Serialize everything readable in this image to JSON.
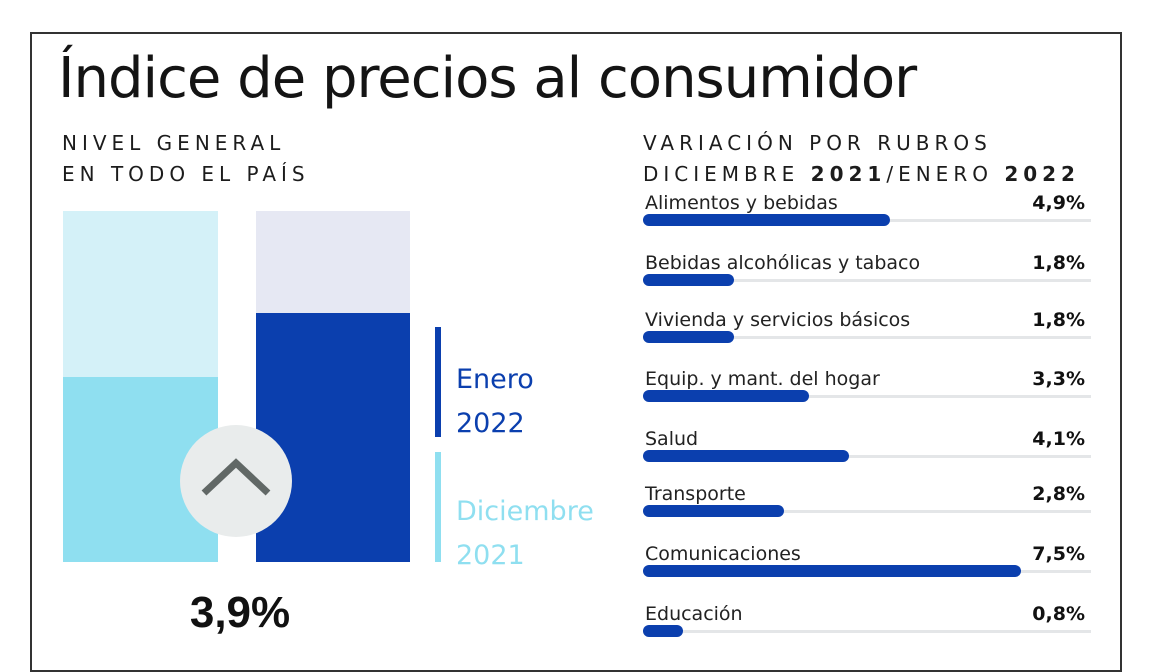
{
  "title": "Índice de precios al consumidor",
  "left_panel": {
    "subtitle_line1": "NIVEL GENERAL",
    "subtitle_line2": "EN TODO EL PAÍS",
    "main_value": "3,9%",
    "legend": {
      "current_month": "Enero",
      "current_year": "2022",
      "previous_month": "Diciembre",
      "previous_year": "2021"
    }
  },
  "right_panel": {
    "subtitle_line1": "VARIACIÓN POR RUBROS",
    "subtitle_line2_a": "DICIEMBRE ",
    "subtitle_line2_b": "2021",
    "subtitle_line2_c": "/ENERO ",
    "subtitle_line2_d": "2022"
  },
  "colors": {
    "current": "#0b3fae",
    "current_bg": "#e6e8f3",
    "previous": "#8fdff0",
    "previous_bg": "#d4f1f8",
    "arrow_circle": "#e9ecec",
    "arrow": "#616866"
  },
  "icons": {
    "trend": "chevron-up-icon"
  },
  "chart_data": [
    {
      "type": "bar",
      "categories": [
        "Diciembre 2021",
        "Enero 2022"
      ],
      "values": [
        2.9,
        3.9
      ],
      "value_labels": [
        "",
        "3,9%"
      ],
      "ylim": [
        0,
        5.5
      ],
      "grid": false
    },
    {
      "type": "bar",
      "orientation": "horizontal",
      "categories": [
        "Alimentos y bebidas",
        "Bebidas alcohólicas y tabaco",
        "Vivienda y servicios básicos",
        "Equip. y mant. del hogar",
        "Salud",
        "Transporte",
        "Comunicaciones",
        "Educación"
      ],
      "values": [
        4.9,
        1.8,
        1.8,
        3.3,
        4.1,
        2.8,
        7.5,
        0.8
      ],
      "value_labels": [
        "4,9%",
        "1,8%",
        "1,8%",
        "3,3%",
        "4,1%",
        "2,8%",
        "7,5%",
        "0,8%"
      ],
      "xlim": [
        0,
        8.9
      ],
      "grid": false
    }
  ]
}
